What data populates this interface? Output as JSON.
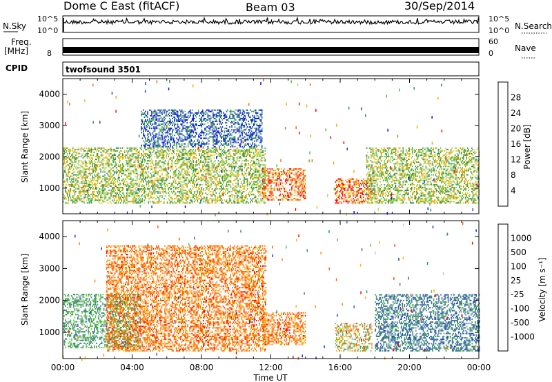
{
  "header": {
    "station": "Dome C East (fitACF)",
    "beam": "Beam 03",
    "date": "30/Sep/2014"
  },
  "summary_panels": {
    "nsky": {
      "label": "N.Sky",
      "top_tick": "10^5",
      "bottom_tick": "10^0"
    },
    "nsearch": {
      "label": "N.Search",
      "top_tick": "10^5",
      "bottom_tick": "10^0"
    },
    "freq": {
      "label_line1": "Freq.",
      "label_line2": "[MHz]",
      "top_tick": "",
      "bottom_tick": "8"
    },
    "nave": {
      "label": "Nave",
      "top_tick": "60",
      "bottom_tick": "0"
    },
    "cpid": {
      "label": "CPID",
      "value": "twofsound 3501"
    }
  },
  "chart_data": [
    {
      "type": "heatmap",
      "name": "power",
      "ylabel": "Slant Range [km]",
      "y_ticks": [
        1000,
        2000,
        3000,
        4000
      ],
      "ylim": [
        180,
        4500
      ],
      "xlim_hours": [
        0,
        24
      ],
      "colorbar_label": "Power [dB]",
      "colorbar_ticks": [
        "4",
        "8",
        "12",
        "16",
        "20",
        "24",
        "28"
      ],
      "colors": [
        "#0a0aff",
        "#1f3fbf",
        "#2e8f5a",
        "#4fbf3f",
        "#c8d228",
        "#ffa500",
        "#ff6a00",
        "#ff0000"
      ],
      "echo_regions": [
        {
          "t0": 0.0,
          "t1": 11.7,
          "r0": 500,
          "r1": 2300,
          "level": "mid"
        },
        {
          "t0": 4.5,
          "t1": 11.5,
          "r0": 2300,
          "r1": 3500,
          "level": "low"
        },
        {
          "t0": 11.5,
          "t1": 14.0,
          "r0": 600,
          "r1": 1600,
          "level": "high"
        },
        {
          "t0": 15.7,
          "t1": 17.8,
          "r0": 500,
          "r1": 1300,
          "level": "high"
        },
        {
          "t0": 17.5,
          "t1": 24.0,
          "r0": 500,
          "r1": 2300,
          "level": "mid"
        }
      ]
    },
    {
      "type": "heatmap",
      "name": "velocity",
      "ylabel": "Slant Range [km]",
      "y_ticks": [
        1000,
        2000,
        3000,
        4000
      ],
      "ylim": [
        180,
        4500
      ],
      "xlim_hours": [
        0,
        24
      ],
      "x_ticks": [
        "00:00",
        "04:00",
        "08:00",
        "12:00",
        "16:00",
        "20:00",
        "00:00"
      ],
      "xlabel": "Time UT",
      "colorbar_label": "Velocity [m s⁻¹]",
      "colorbar_ticks": [
        "1000",
        "500",
        "100",
        "25",
        "-25",
        "-100",
        "-500",
        "-1000"
      ],
      "colors": [
        "#1a3acf",
        "#3f64b0",
        "#3d8f6a",
        "#55c43c",
        "#c8c8c8",
        "#ffb400",
        "#ff8c00",
        "#ff5a00",
        "#ff0000"
      ],
      "echo_regions": [
        {
          "t0": 0.0,
          "t1": 4.5,
          "r0": 500,
          "r1": 2200,
          "v": "positive_low"
        },
        {
          "t0": 2.5,
          "t1": 11.7,
          "r0": 400,
          "r1": 3700,
          "v": "negative_mid"
        },
        {
          "t0": 11.5,
          "t1": 14.0,
          "r0": 600,
          "r1": 1600,
          "v": "negative_mid"
        },
        {
          "t0": 15.7,
          "t1": 17.8,
          "r0": 400,
          "r1": 1300,
          "v": "mixed"
        },
        {
          "t0": 18.0,
          "t1": 24.0,
          "r0": 400,
          "r1": 2200,
          "v": "positive_high"
        }
      ]
    }
  ]
}
